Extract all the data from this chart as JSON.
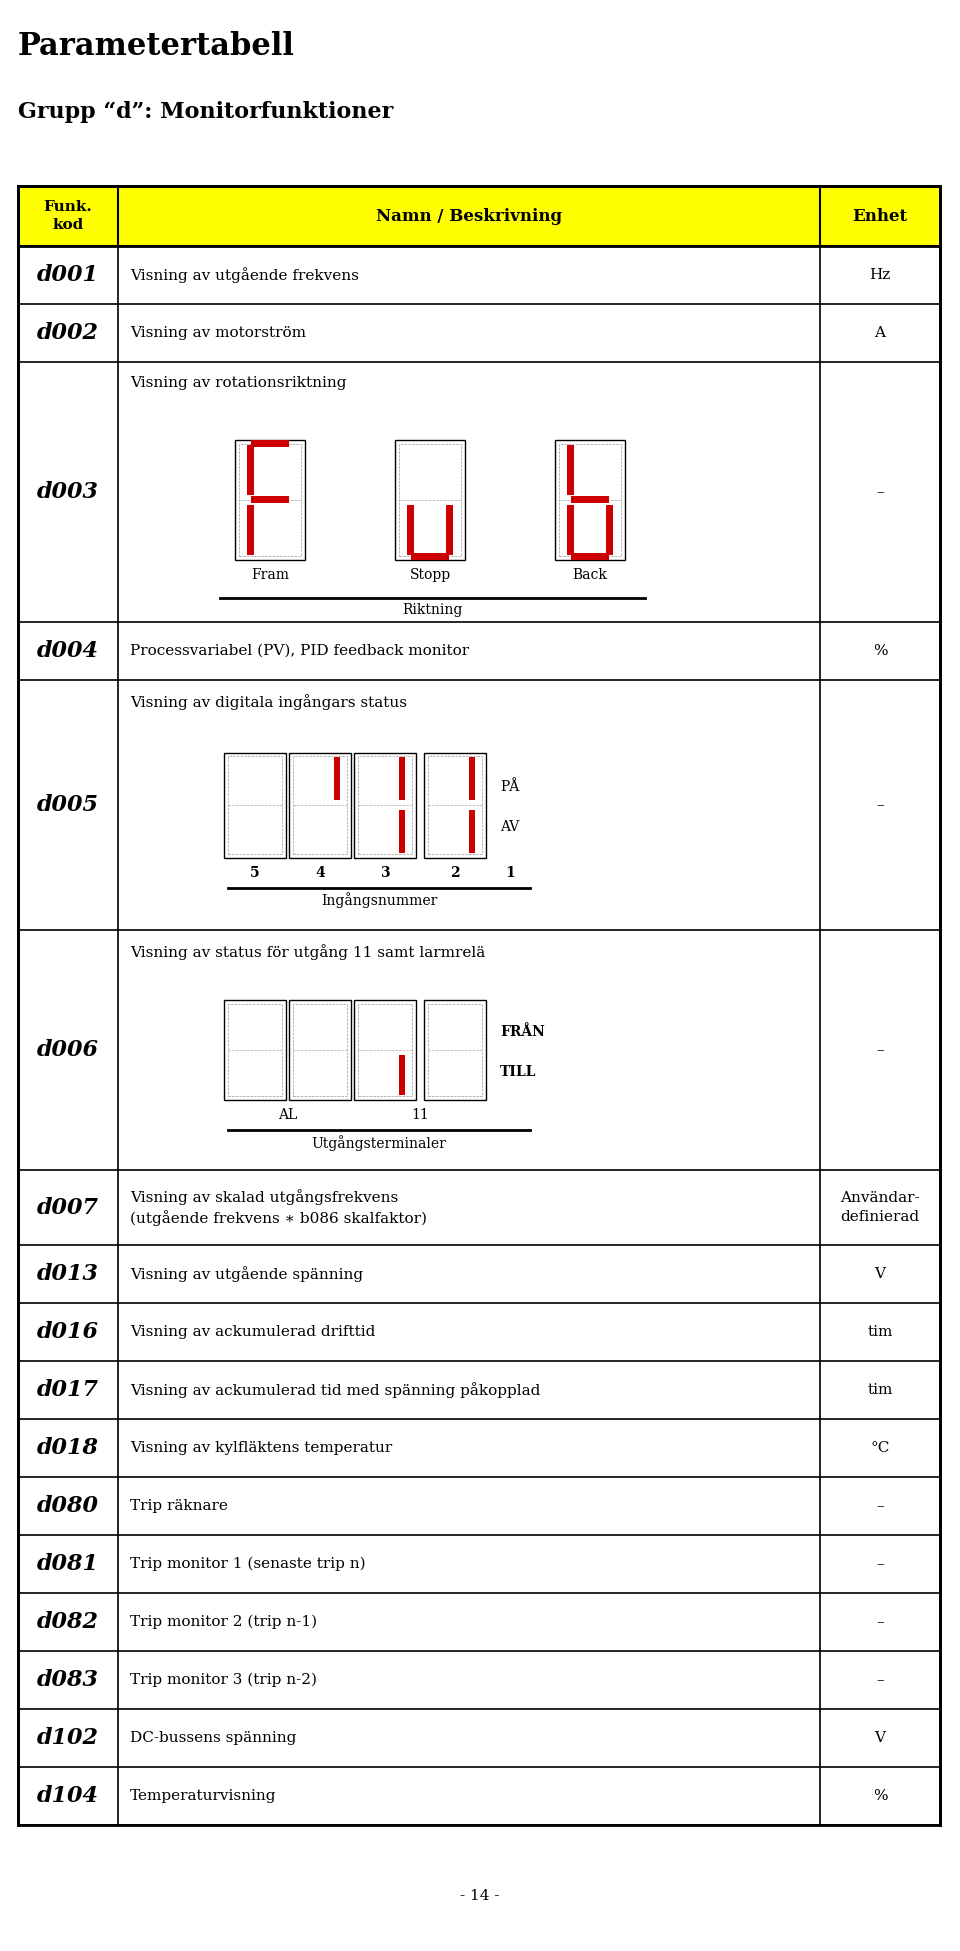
{
  "title": "Parametertabell",
  "subtitle": "Grupp “d”: Monitorfunktioner",
  "header_bg": "#FFFF00",
  "rows": [
    {
      "code": "d001",
      "desc": "Visning av utgående frekvens",
      "unit": "Hz",
      "extra": null
    },
    {
      "code": "d002",
      "desc": "Visning av motorström",
      "unit": "A",
      "extra": null
    },
    {
      "code": "d003",
      "desc": "Visning av rotationsriktning",
      "unit": "–",
      "extra": "rotation"
    },
    {
      "code": "d004",
      "desc": "Processvariabel (PV), PID feedback monitor",
      "unit": "%",
      "extra": null
    },
    {
      "code": "d005",
      "desc": "Visning av digitala ingångars status",
      "unit": "–",
      "extra": "digital_inputs"
    },
    {
      "code": "d006",
      "desc": "Visning av status för utgång 11 samt larmrelä",
      "unit": "–",
      "extra": "output_status"
    },
    {
      "code": "d007",
      "desc": "Visning av skalad utgångsfrekvens\n(utgående frekvens ∗ b086 skalfaktor)",
      "unit": "Användar-\ndefinierad",
      "extra": null
    },
    {
      "code": "d013",
      "desc": "Visning av utgående spänning",
      "unit": "V",
      "extra": null
    },
    {
      "code": "d016",
      "desc": "Visning av ackumulerad drifttid",
      "unit": "tim",
      "extra": null
    },
    {
      "code": "d017",
      "desc": "Visning av ackumulerad tid med spänning påkopplad",
      "unit": "tim",
      "extra": null
    },
    {
      "code": "d018",
      "desc": "Visning av kylfläktens temperatur",
      "unit": "°C",
      "extra": null
    },
    {
      "code": "d080",
      "desc": "Trip räknare",
      "unit": "–",
      "extra": null
    },
    {
      "code": "d081",
      "desc": "Trip monitor 1 (senaste trip n)",
      "unit": "–",
      "extra": null
    },
    {
      "code": "d082",
      "desc": "Trip monitor 2 (trip n‑1)",
      "unit": "–",
      "extra": null
    },
    {
      "code": "d083",
      "desc": "Trip monitor 3 (trip n‑2)",
      "unit": "–",
      "extra": null
    },
    {
      "code": "d102",
      "desc": "DC-bussens spänning",
      "unit": "V",
      "extra": null
    },
    {
      "code": "d104",
      "desc": "Temperaturvisning",
      "unit": "%",
      "extra": null
    }
  ],
  "page_num": "- 14 -",
  "red_color": "#CC0000"
}
